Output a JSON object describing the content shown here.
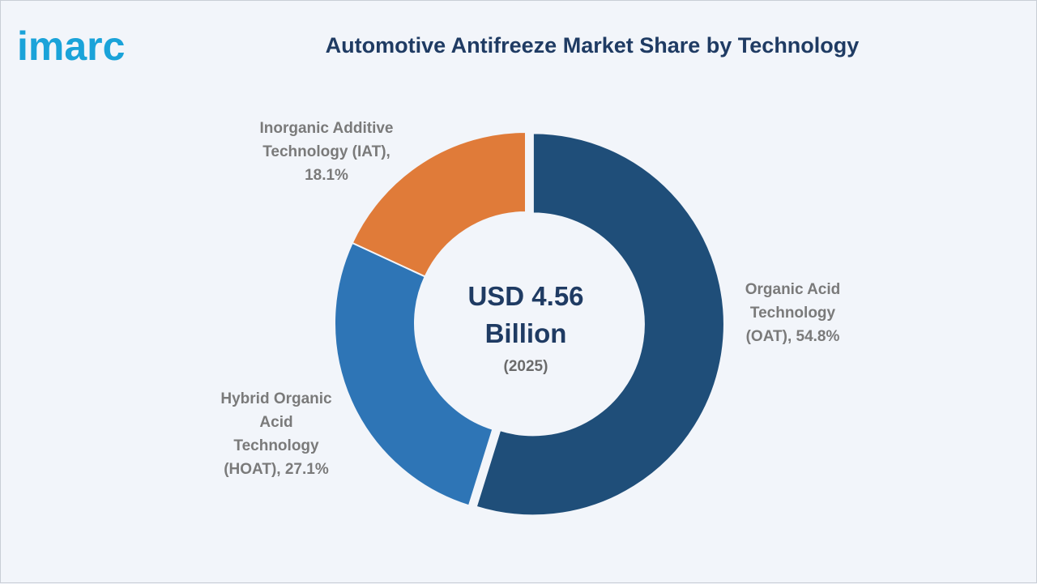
{
  "brand": {
    "logo_text": "imarc",
    "logo_color": "#1aa3d9"
  },
  "title": "Automotive Antifreeze Market Share by Technology",
  "center": {
    "value_line1": "USD 4.56",
    "value_line2": "Billion",
    "year": "(2025)"
  },
  "chart_data": {
    "type": "pie",
    "title": "Automotive Antifreeze Market Share by Technology",
    "donut": true,
    "unit": "%",
    "slices": [
      {
        "label": "Organic Acid Technology (OAT)",
        "value": 54.8,
        "color": "#1f4e79",
        "label_lines": [
          "Organic Acid",
          "Technology",
          "(OAT), 54.8%"
        ]
      },
      {
        "label": "Hybrid Organic Acid Technology (HOAT)",
        "value": 27.1,
        "color": "#2e75b6",
        "label_lines": [
          "Hybrid Organic",
          "Acid",
          "Technology",
          "(HOAT), 27.1%"
        ]
      },
      {
        "label": "Inorganic Additive Technology (IAT)",
        "value": 18.1,
        "color": "#e07b39",
        "label_lines": [
          "Inorganic Additive",
          "Technology (IAT),",
          "18.1%"
        ]
      }
    ]
  }
}
